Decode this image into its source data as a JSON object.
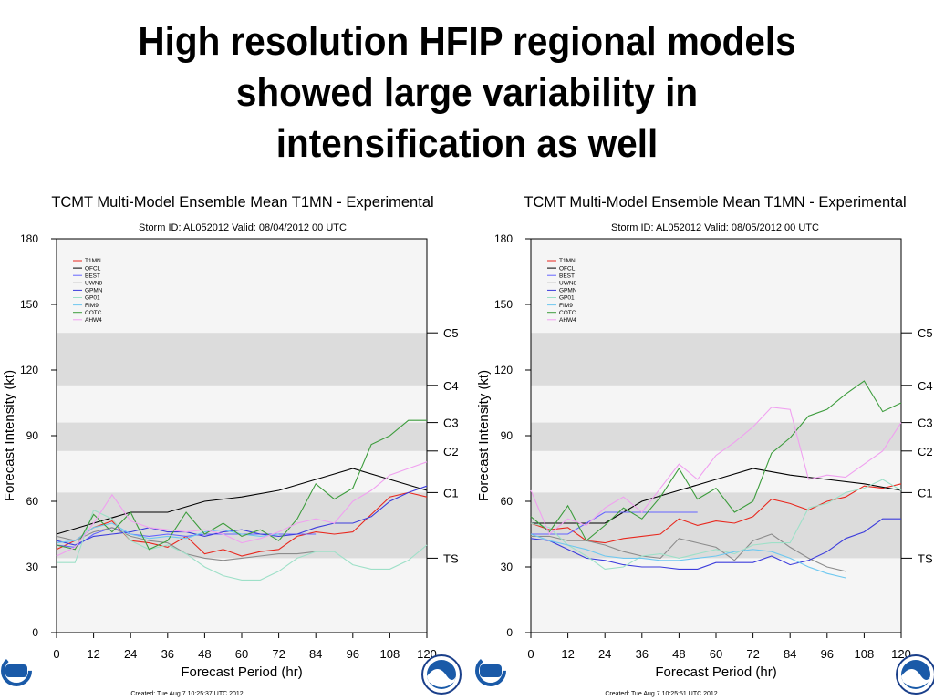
{
  "slide": {
    "title_lines": [
      "High resolution HFIP regional models",
      "showed large variability in",
      "intensification as well"
    ]
  },
  "chart_data": [
    {
      "type": "line",
      "title": "TCMT Multi-Model Ensemble Mean T1MN - Experimental",
      "subtitle": "Storm ID: AL052012   Valid: 08/04/2012 00 UTC",
      "xlabel": "Forecast Period (hr)",
      "ylabel": "Forecast Intensity (kt)",
      "xlim": [
        0,
        120
      ],
      "ylim": [
        0,
        180
      ],
      "xticks": [
        "0",
        "12",
        "24",
        "36",
        "48",
        "60",
        "72",
        "84",
        "96",
        "108",
        "120"
      ],
      "yticks": [
        "0",
        "30",
        "60",
        "90",
        "120",
        "150",
        "180"
      ],
      "legend": "top-left",
      "categories": [
        {
          "label": "TS",
          "value": 34
        },
        {
          "label": "C1",
          "value": 64
        },
        {
          "label": "C2",
          "value": 83
        },
        {
          "label": "C3",
          "value": 96
        },
        {
          "label": "C4",
          "value": 113
        },
        {
          "label": "C5",
          "value": 137
        }
      ],
      "bands": [
        [
          34,
          64
        ],
        [
          83,
          96
        ],
        [
          113,
          137
        ]
      ],
      "footer": "Created: Tue Aug  7 10:25:37 UTC 2012",
      "series": [
        {
          "name": "T1MN",
          "color": "#e8281e",
          "x": [
            0,
            6,
            12,
            18,
            24,
            30,
            36,
            42,
            48,
            54,
            60,
            66,
            72,
            78,
            84,
            90,
            96,
            102,
            108,
            114,
            120
          ],
          "y": [
            38,
            42,
            48,
            51,
            42,
            41,
            39,
            44,
            36,
            38,
            35,
            37,
            38,
            44,
            46,
            45,
            46,
            54,
            62,
            64,
            62
          ]
        },
        {
          "name": "OFCL",
          "color": "#000000",
          "x": [
            0,
            12,
            24,
            36,
            48,
            60,
            72,
            84,
            96,
            108,
            120
          ],
          "y": [
            45,
            50,
            55,
            55,
            60,
            62,
            65,
            70,
            75,
            70,
            65
          ]
        },
        {
          "name": "BEST",
          "color": "#6464ff",
          "x": [
            0,
            6,
            12,
            18,
            24,
            30,
            36,
            42,
            48,
            54,
            60,
            66,
            72,
            78,
            84
          ],
          "y": [
            40,
            39,
            45,
            48,
            45,
            44,
            45,
            44,
            45,
            45,
            45,
            45,
            45,
            45,
            45
          ]
        },
        {
          "name": "UWN8",
          "color": "#8c8c8c",
          "x": [
            0,
            6,
            12,
            18,
            24,
            30,
            36,
            42,
            48,
            54,
            60,
            66,
            72,
            78,
            84
          ],
          "y": [
            44,
            42,
            46,
            48,
            44,
            42,
            41,
            36,
            34,
            33,
            34,
            35,
            36,
            36,
            37
          ]
        },
        {
          "name": "GPMN",
          "color": "#3c3cdc",
          "x": [
            0,
            6,
            12,
            18,
            24,
            30,
            36,
            42,
            48,
            54,
            60,
            66,
            72,
            78,
            84,
            90,
            96,
            102,
            108,
            114,
            120
          ],
          "y": [
            42,
            40,
            44,
            45,
            46,
            48,
            46,
            46,
            44,
            46,
            47,
            45,
            44,
            45,
            48,
            50,
            50,
            53,
            60,
            64,
            67
          ]
        },
        {
          "name": "GP01",
          "color": "#9ee0c8",
          "x": [
            0,
            6,
            12,
            18,
            24,
            30,
            36,
            42,
            48,
            54,
            60,
            66,
            72,
            78,
            84,
            90,
            96,
            102,
            108,
            114,
            120
          ],
          "y": [
            32,
            32,
            56,
            52,
            42,
            38,
            40,
            36,
            30,
            26,
            24,
            24,
            28,
            34,
            37,
            37,
            31,
            29,
            29,
            33,
            40
          ]
        },
        {
          "name": "FIM9",
          "color": "#6ec8f0",
          "x": [
            0,
            6,
            12,
            18,
            24,
            30,
            36,
            42,
            48,
            54,
            60,
            66,
            72
          ],
          "y": [
            41,
            42,
            48,
            50,
            45,
            43,
            44,
            43,
            46,
            47,
            45,
            44,
            45
          ]
        },
        {
          "name": "COTC",
          "color": "#3c9c3c",
          "x": [
            0,
            6,
            12,
            18,
            24,
            30,
            36,
            42,
            48,
            54,
            60,
            66,
            72,
            78,
            84,
            90,
            96,
            102,
            108,
            114,
            120
          ],
          "y": [
            40,
            38,
            54,
            46,
            55,
            38,
            42,
            55,
            45,
            50,
            44,
            47,
            42,
            52,
            68,
            61,
            66,
            86,
            90,
            97,
            97
          ]
        },
        {
          "name": "AHW4",
          "color": "#f0a0f0",
          "x": [
            0,
            6,
            12,
            18,
            24,
            30,
            36,
            42,
            48,
            54,
            60,
            66,
            72,
            78,
            84,
            90,
            96,
            102,
            108,
            114,
            120
          ],
          "y": [
            35,
            39,
            50,
            63,
            51,
            48,
            47,
            46,
            47,
            45,
            41,
            43,
            46,
            50,
            52,
            50,
            60,
            65,
            72,
            75,
            78
          ]
        }
      ]
    },
    {
      "type": "line",
      "title": "TCMT Multi-Model Ensemble Mean T1MN - Experimental",
      "subtitle": "Storm ID: AL052012   Valid: 08/05/2012 00 UTC",
      "xlabel": "Forecast Period (hr)",
      "ylabel": "Forecast Intensity (kt)",
      "xlim": [
        0,
        120
      ],
      "ylim": [
        0,
        180
      ],
      "xticks": [
        "0",
        "12",
        "24",
        "36",
        "48",
        "60",
        "72",
        "84",
        "96",
        "108",
        "120"
      ],
      "yticks": [
        "0",
        "30",
        "60",
        "90",
        "120",
        "150",
        "180"
      ],
      "legend": "top-left",
      "categories": [
        {
          "label": "TS",
          "value": 34
        },
        {
          "label": "C1",
          "value": 64
        },
        {
          "label": "C2",
          "value": 83
        },
        {
          "label": "C3",
          "value": 96
        },
        {
          "label": "C4",
          "value": 113
        },
        {
          "label": "C5",
          "value": 137
        }
      ],
      "bands": [
        [
          34,
          64
        ],
        [
          83,
          96
        ],
        [
          113,
          137
        ]
      ],
      "footer": "Created: Tue Aug  7 10:25:51 UTC 2012",
      "series": [
        {
          "name": "T1MN",
          "color": "#e8281e",
          "x": [
            0,
            6,
            12,
            18,
            24,
            30,
            36,
            42,
            48,
            54,
            60,
            66,
            72,
            78,
            84,
            90,
            96,
            102,
            108,
            114,
            120
          ],
          "y": [
            50,
            47,
            48,
            42,
            41,
            43,
            44,
            45,
            52,
            49,
            51,
            50,
            53,
            61,
            59,
            56,
            60,
            62,
            67,
            66,
            68
          ]
        },
        {
          "name": "OFCL",
          "color": "#000000",
          "x": [
            0,
            12,
            24,
            36,
            48,
            60,
            72,
            84,
            96,
            108,
            120
          ],
          "y": [
            50,
            50,
            50,
            60,
            65,
            70,
            75,
            72,
            70,
            68,
            65
          ]
        },
        {
          "name": "BEST",
          "color": "#6464ff",
          "x": [
            0,
            6,
            12,
            18,
            24,
            30,
            36,
            42,
            48,
            54
          ],
          "y": [
            45,
            45,
            45,
            50,
            55,
            55,
            55,
            55,
            55,
            55
          ]
        },
        {
          "name": "UWN8",
          "color": "#8c8c8c",
          "x": [
            0,
            6,
            12,
            18,
            24,
            30,
            36,
            42,
            48,
            54,
            60,
            66,
            72,
            78,
            84,
            90,
            96,
            102
          ],
          "y": [
            44,
            44,
            42,
            42,
            40,
            37,
            35,
            34,
            43,
            41,
            39,
            33,
            42,
            45,
            39,
            34,
            30,
            28
          ]
        },
        {
          "name": "GPMN",
          "color": "#3c3cdc",
          "x": [
            0,
            6,
            12,
            18,
            24,
            30,
            36,
            42,
            48,
            54,
            60,
            66,
            72,
            78,
            84,
            90,
            96,
            102,
            108,
            114,
            120
          ],
          "y": [
            43,
            42,
            38,
            34,
            33,
            31,
            30,
            30,
            29,
            29,
            32,
            32,
            32,
            35,
            31,
            33,
            37,
            43,
            46,
            52,
            52
          ]
        },
        {
          "name": "GP01",
          "color": "#9ee0c8",
          "x": [
            0,
            6,
            12,
            18,
            24,
            30,
            36,
            42,
            48,
            54,
            60,
            66,
            72,
            78,
            84,
            90,
            96,
            102,
            108,
            114,
            120
          ],
          "y": [
            50,
            48,
            40,
            35,
            29,
            30,
            35,
            36,
            34,
            36,
            38,
            36,
            40,
            41,
            41,
            57,
            59,
            64,
            66,
            70,
            65
          ]
        },
        {
          "name": "FIM9",
          "color": "#6ec8f0",
          "x": [
            0,
            6,
            12,
            18,
            24,
            30,
            36,
            42,
            48,
            54,
            60,
            66,
            72,
            78,
            84,
            90,
            96,
            102
          ],
          "y": [
            45,
            42,
            40,
            38,
            35,
            34,
            34,
            33,
            33,
            34,
            35,
            37,
            38,
            37,
            34,
            30,
            27,
            25
          ]
        },
        {
          "name": "COTC",
          "color": "#3c9c3c",
          "x": [
            0,
            6,
            12,
            18,
            24,
            30,
            36,
            42,
            48,
            54,
            60,
            66,
            72,
            78,
            84,
            90,
            96,
            102,
            108,
            114,
            120
          ],
          "y": [
            53,
            46,
            58,
            42,
            49,
            57,
            52,
            62,
            75,
            61,
            66,
            55,
            60,
            82,
            89,
            99,
            102,
            109,
            115,
            101,
            105
          ]
        },
        {
          "name": "AHW4",
          "color": "#f0a0f0",
          "x": [
            0,
            6,
            12,
            18,
            24,
            30,
            36,
            42,
            48,
            54,
            60,
            66,
            72,
            78,
            84,
            90,
            96,
            102,
            108,
            114,
            120
          ],
          "y": [
            65,
            45,
            52,
            49,
            57,
            62,
            55,
            66,
            77,
            70,
            81,
            87,
            94,
            103,
            102,
            70,
            72,
            71,
            77,
            83,
            96
          ]
        }
      ]
    }
  ]
}
